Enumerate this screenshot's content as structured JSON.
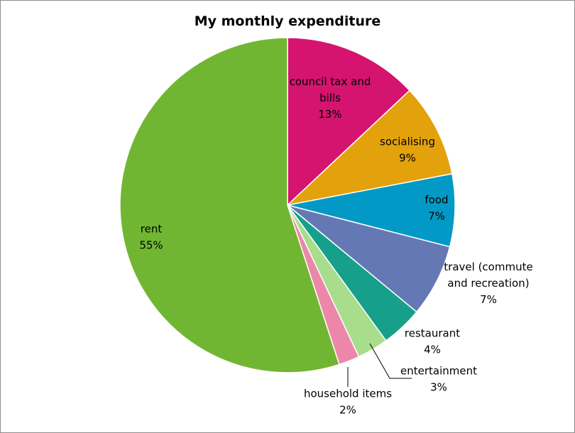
{
  "chart_data": {
    "type": "pie",
    "title": "My monthly expenditure",
    "slices": [
      {
        "label": [
          "council tax and",
          "bills"
        ],
        "value": 13,
        "pct": "13%",
        "color": "#d4146f"
      },
      {
        "label": [
          "socialising"
        ],
        "value": 9,
        "pct": "9%",
        "color": "#e3a10b"
      },
      {
        "label": [
          "food"
        ],
        "value": 7,
        "pct": "7%",
        "color": "#0399c6"
      },
      {
        "label": [
          "travel (commute",
          "and recreation)"
        ],
        "value": 7,
        "pct": "7%",
        "color": "#6478b3"
      },
      {
        "label": [
          "restaurant"
        ],
        "value": 4,
        "pct": "4%",
        "color": "#16a08c"
      },
      {
        "label": [
          "entertainment"
        ],
        "value": 3,
        "pct": "3%",
        "color": "#a8dd8c"
      },
      {
        "label": [
          "household items"
        ],
        "value": 2,
        "pct": "2%",
        "color": "#ec87aa"
      },
      {
        "label": [
          "rent"
        ],
        "value": 55,
        "pct": "55%",
        "color": "#71b632"
      }
    ]
  }
}
